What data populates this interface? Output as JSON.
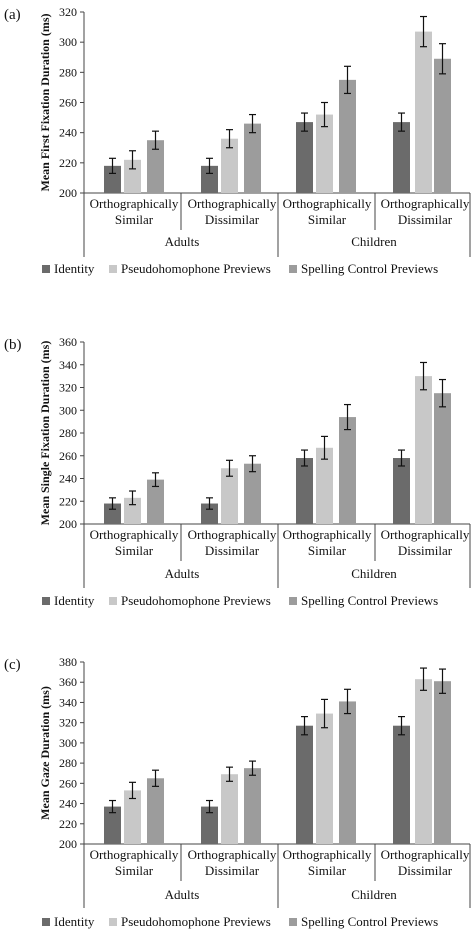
{
  "colors": {
    "Identity": "#6b6b6b",
    "Pseudohomophone Previews": "#c8c8c8",
    "Spelling Control Previews": "#9c9c9c",
    "axis": "#444444",
    "error_bar": "#111111"
  },
  "chart_data": [
    {
      "type": "bar",
      "panel_label": "(a)",
      "ylabel": "Mean First Fixation Duration (ms)",
      "ylim": [
        200,
        320
      ],
      "yticks": [
        200,
        220,
        240,
        260,
        280,
        300,
        320
      ],
      "categories": [
        [
          "Orthographically",
          "Similar"
        ],
        [
          "Orthographically",
          "Dissimilar"
        ],
        [
          "Orthographically",
          "Similar"
        ],
        [
          "Orthographically",
          "Dissimilar"
        ]
      ],
      "groups": [
        "Adults",
        "Children"
      ],
      "series": [
        {
          "name": "Identity",
          "values": [
            218,
            218,
            247,
            247
          ],
          "errors": [
            5,
            5,
            6,
            6
          ]
        },
        {
          "name": "Pseudohomophone Previews",
          "values": [
            222,
            236,
            252,
            307
          ],
          "errors": [
            6,
            6,
            8,
            10
          ]
        },
        {
          "name": "Spelling Control Previews",
          "values": [
            235,
            246,
            275,
            289
          ],
          "errors": [
            6,
            6,
            9,
            10
          ]
        }
      ],
      "legend": "bottom",
      "grid": false
    },
    {
      "type": "bar",
      "panel_label": "(b)",
      "ylabel": "Mean Single Fixation Duration (ms)",
      "ylim": [
        200,
        360
      ],
      "yticks": [
        200,
        220,
        240,
        260,
        280,
        300,
        320,
        340,
        360
      ],
      "categories": [
        [
          "Orthographically",
          "Similar"
        ],
        [
          "Orthographically",
          "Dissimilar"
        ],
        [
          "Orthographically",
          "Similar"
        ],
        [
          "Orthographically",
          "Dissimilar"
        ]
      ],
      "groups": [
        "Adults",
        "Children"
      ],
      "series": [
        {
          "name": "Identity",
          "values": [
            218,
            218,
            258,
            258
          ],
          "errors": [
            5,
            5,
            7,
            7
          ]
        },
        {
          "name": "Pseudohomophone Previews",
          "values": [
            223,
            249,
            267,
            330
          ],
          "errors": [
            6,
            7,
            10,
            12
          ]
        },
        {
          "name": "Spelling Control Previews",
          "values": [
            239,
            253,
            294,
            315
          ],
          "errors": [
            6,
            7,
            11,
            12
          ]
        }
      ],
      "legend": "bottom",
      "grid": false
    },
    {
      "type": "bar",
      "panel_label": "(c)",
      "ylabel": "Mean Gaze Duration (ms)",
      "ylim": [
        200,
        380
      ],
      "yticks": [
        200,
        220,
        240,
        260,
        280,
        300,
        320,
        340,
        360,
        380
      ],
      "categories": [
        [
          "Orthographically",
          "Similar"
        ],
        [
          "Orthographically",
          "Dissimilar"
        ],
        [
          "Orthographically",
          "Similar"
        ],
        [
          "Orthographically",
          "Dissimilar"
        ]
      ],
      "groups": [
        "Adults",
        "Children"
      ],
      "series": [
        {
          "name": "Identity",
          "values": [
            237,
            237,
            317,
            317
          ],
          "errors": [
            6,
            6,
            9,
            9
          ]
        },
        {
          "name": "Pseudohomophone Previews",
          "values": [
            253,
            269,
            329,
            363
          ],
          "errors": [
            8,
            7,
            14,
            11
          ]
        },
        {
          "name": "Spelling Control Previews",
          "values": [
            265,
            275,
            341,
            361
          ],
          "errors": [
            8,
            7,
            12,
            12
          ]
        }
      ],
      "legend": "bottom",
      "grid": false
    }
  ]
}
